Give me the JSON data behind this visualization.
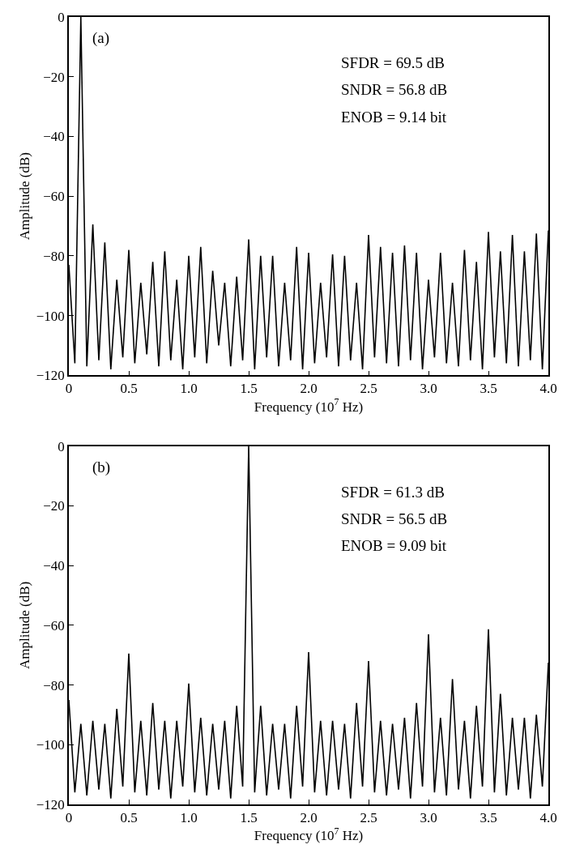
{
  "chart_data": [
    {
      "type": "line",
      "xlabel": "Frequency (10$^{7}$ Hz)",
      "ylabel": "Amplitude (dB)",
      "annotations": [
        "(a)",
        "SFDR = 69.5 dB",
        "SNDR = 56.8 dB",
        "ENOB = 9.14 bit"
      ],
      "xlim": [
        0,
        4
      ],
      "ylim": [
        -120,
        0
      ],
      "xticks": [
        0,
        0.5,
        {
          "value": 1,
          "label": "1.0"
        },
        1.5,
        {
          "value": 2,
          "label": "2.0"
        },
        2.5,
        {
          "value": 3,
          "label": "3.0"
        },
        3.5,
        {
          "value": 4,
          "label": "4.0"
        }
      ],
      "yticks": [
        0,
        {
          "value": -20,
          "label": "−20"
        },
        {
          "value": -40,
          "label": "−40"
        },
        {
          "value": -60,
          "label": "−60"
        },
        {
          "value": -80,
          "label": "−80"
        },
        {
          "value": -100,
          "label": "−100"
        },
        {
          "value": -120,
          "label": "−120"
        }
      ],
      "x": [
        0,
        0.05,
        0.1,
        0.15,
        0.2,
        0.25,
        0.3,
        0.35,
        0.4,
        0.45,
        0.5,
        0.55,
        0.6,
        0.65,
        0.7,
        0.75,
        0.8,
        0.85,
        0.9,
        0.95,
        1,
        1.05,
        1.1,
        1.15,
        1.2,
        1.25,
        1.3,
        1.35,
        1.4,
        1.45,
        1.5,
        1.55,
        1.6,
        1.65,
        1.7,
        1.75,
        1.8,
        1.85,
        1.9,
        1.95,
        2,
        2.05,
        2.1,
        2.15,
        2.2,
        2.25,
        2.3,
        2.35,
        2.4,
        2.45,
        2.5,
        2.55,
        2.6,
        2.65,
        2.7,
        2.75,
        2.8,
        2.85,
        2.9,
        2.95,
        3,
        3.05,
        3.1,
        3.15,
        3.2,
        3.25,
        3.3,
        3.35,
        3.4,
        3.45,
        3.5,
        3.55,
        3.6,
        3.65,
        3.7,
        3.75,
        3.8,
        3.85,
        3.9,
        3.95,
        4
      ],
      "series": [
        {
          "color": "#000000",
          "values": [
            -83,
            -116,
            0,
            -117,
            -69.5,
            -115,
            -75.5,
            -118,
            -88,
            -114,
            -78,
            -116,
            -89,
            -113,
            -82,
            -117,
            -78.5,
            -115,
            -88,
            -118,
            -80,
            -114,
            -77,
            -116,
            -85,
            -110,
            -89,
            -117,
            -87,
            -115,
            -74.5,
            -118,
            -80,
            -114,
            -80,
            -117,
            -89,
            -115,
            -77,
            -118,
            -79,
            -116,
            -89,
            -114,
            -79.5,
            -117,
            -80,
            -115,
            -89,
            -118,
            -73,
            -114,
            -77,
            -116,
            -79,
            -117,
            -76.5,
            -115,
            -79,
            -118,
            -88,
            -114,
            -79,
            -116,
            -89,
            -117,
            -78,
            -115,
            -82,
            -118,
            -72,
            -114,
            -78.5,
            -116,
            -73,
            -117,
            -78.5,
            -115,
            -72.5,
            -118,
            -71.5
          ]
        }
      ]
    },
    {
      "type": "line",
      "xlabel": "Frequency (10$^{7}$ Hz)",
      "ylabel": "Amplitude (dB)",
      "annotations": [
        "(b)",
        "SFDR = 61.3 dB",
        "SNDR = 56.5 dB",
        "ENOB = 9.09 bit"
      ],
      "xlim": [
        0,
        4
      ],
      "ylim": [
        -120,
        0
      ],
      "xticks": [
        0,
        0.5,
        {
          "value": 1,
          "label": "1.0"
        },
        1.5,
        {
          "value": 2,
          "label": "2.0"
        },
        2.5,
        {
          "value": 3,
          "label": "3.0"
        },
        3.5,
        {
          "value": 4,
          "label": "4.0"
        }
      ],
      "yticks": [
        0,
        {
          "value": -20,
          "label": "−20"
        },
        {
          "value": -40,
          "label": "−40"
        },
        {
          "value": -60,
          "label": "−60"
        },
        {
          "value": -80,
          "label": "−80"
        },
        {
          "value": -100,
          "label": "−100"
        },
        {
          "value": -120,
          "label": "−120"
        }
      ],
      "x": [
        0,
        0.05,
        0.1,
        0.15,
        0.2,
        0.25,
        0.3,
        0.35,
        0.4,
        0.45,
        0.5,
        0.55,
        0.6,
        0.65,
        0.7,
        0.75,
        0.8,
        0.85,
        0.9,
        0.95,
        1,
        1.05,
        1.1,
        1.15,
        1.2,
        1.25,
        1.3,
        1.35,
        1.4,
        1.45,
        1.5,
        1.55,
        1.6,
        1.65,
        1.7,
        1.75,
        1.8,
        1.85,
        1.9,
        1.95,
        2,
        2.05,
        2.1,
        2.15,
        2.2,
        2.25,
        2.3,
        2.35,
        2.4,
        2.45,
        2.5,
        2.55,
        2.6,
        2.65,
        2.7,
        2.75,
        2.8,
        2.85,
        2.9,
        2.95,
        3,
        3.05,
        3.1,
        3.15,
        3.2,
        3.25,
        3.3,
        3.35,
        3.4,
        3.45,
        3.5,
        3.55,
        3.6,
        3.65,
        3.7,
        3.75,
        3.8,
        3.85,
        3.9,
        3.95,
        4
      ],
      "series": [
        {
          "color": "#000000",
          "values": [
            -85,
            -116,
            -93,
            -117,
            -92,
            -115,
            -93,
            -118,
            -88,
            -114,
            -69.5,
            -116,
            -92,
            -117,
            -86,
            -115,
            -92,
            -118,
            -92,
            -114,
            -79.5,
            -116,
            -91,
            -117,
            -93,
            -115,
            -92,
            -118,
            -87,
            -114,
            0,
            -116,
            -87,
            -117,
            -93,
            -115,
            -93,
            -118,
            -87,
            -114,
            -69,
            -116,
            -92,
            -117,
            -92,
            -115,
            -93,
            -118,
            -86,
            -114,
            -72,
            -116,
            -92,
            -117,
            -93,
            -115,
            -91,
            -118,
            -86,
            -114,
            -63,
            -116,
            -91,
            -117,
            -78,
            -115,
            -92,
            -118,
            -87,
            -114,
            -61.3,
            -116,
            -83,
            -117,
            -91,
            -115,
            -91,
            -118,
            -90,
            -114,
            -72.5
          ]
        }
      ]
    }
  ]
}
